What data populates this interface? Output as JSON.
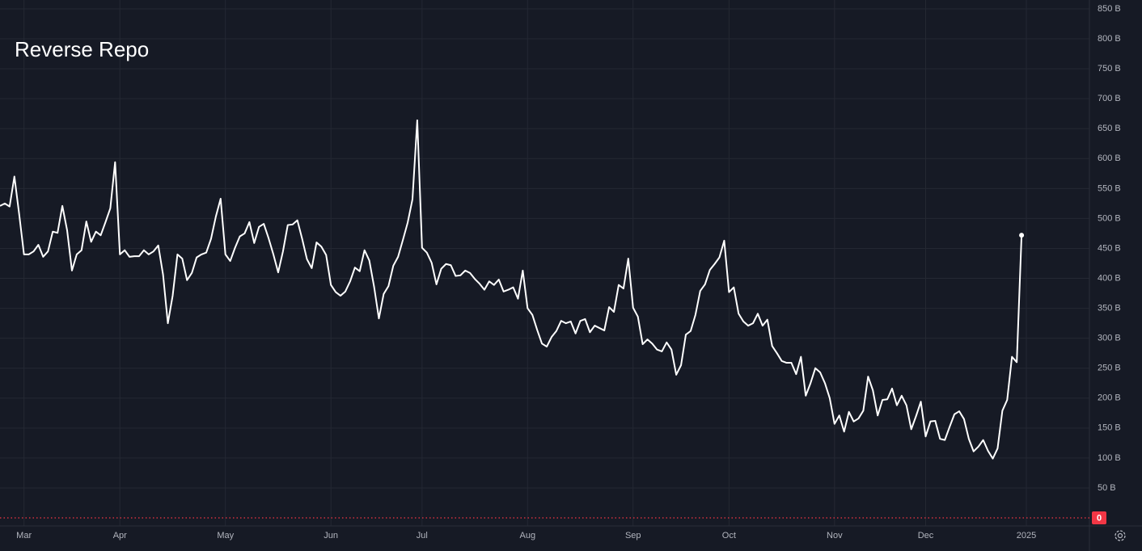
{
  "chart_data": {
    "type": "line",
    "title": "Reverse Repo",
    "categories": [
      null,
      null,
      null,
      null,
      null,
      "Mar",
      null,
      null,
      null,
      null,
      null,
      null,
      null,
      null,
      null,
      null,
      null,
      null,
      null,
      null,
      null,
      null,
      null,
      null,
      null,
      "Apr",
      null,
      null,
      null,
      null,
      null,
      null,
      null,
      null,
      null,
      null,
      null,
      null,
      null,
      null,
      null,
      null,
      null,
      null,
      null,
      null,
      null,
      "May",
      null,
      null,
      null,
      null,
      null,
      null,
      null,
      null,
      null,
      null,
      null,
      null,
      null,
      null,
      null,
      null,
      null,
      null,
      null,
      null,
      null,
      "Jun",
      null,
      null,
      null,
      null,
      null,
      null,
      null,
      null,
      null,
      null,
      null,
      null,
      null,
      null,
      null,
      null,
      null,
      null,
      "Jul",
      null,
      null,
      null,
      null,
      null,
      null,
      null,
      null,
      null,
      null,
      null,
      null,
      null,
      null,
      null,
      null,
      null,
      null,
      null,
      null,
      null,
      "Aug",
      null,
      null,
      null,
      null,
      null,
      null,
      null,
      null,
      null,
      null,
      null,
      null,
      null,
      null,
      null,
      null,
      null,
      null,
      null,
      null,
      null,
      "Sep",
      null,
      null,
      null,
      null,
      null,
      null,
      null,
      null,
      null,
      null,
      null,
      null,
      null,
      null,
      null,
      null,
      null,
      null,
      null,
      "Oct",
      null,
      null,
      null,
      null,
      null,
      null,
      null,
      null,
      null,
      null,
      null,
      null,
      null,
      null,
      null,
      null,
      null,
      null,
      null,
      null,
      null,
      "Nov",
      null,
      null,
      null,
      null,
      null,
      null,
      null,
      null,
      null,
      null,
      null,
      null,
      null,
      null,
      null,
      null,
      null,
      null,
      "Dec",
      null,
      null,
      null,
      null,
      null,
      null,
      null,
      null,
      null,
      null,
      null,
      null,
      null,
      null,
      null,
      null,
      null,
      null,
      null,
      null,
      "2025"
    ],
    "values": [
      521,
      525,
      520,
      570,
      507,
      440,
      440,
      445,
      456,
      436,
      445,
      478,
      476,
      521,
      480,
      413,
      440,
      447,
      495,
      461,
      478,
      472,
      494,
      517,
      594,
      440,
      447,
      436,
      437,
      437,
      447,
      440,
      445,
      455,
      406,
      325,
      371,
      440,
      433,
      397,
      409,
      435,
      440,
      443,
      466,
      503,
      533,
      440,
      429,
      451,
      470,
      475,
      494,
      459,
      486,
      491,
      467,
      440,
      410,
      445,
      489,
      490,
      497,
      466,
      432,
      417,
      460,
      453,
      439,
      389,
      377,
      371,
      378,
      395,
      418,
      412,
      447,
      430,
      386,
      333,
      374,
      387,
      421,
      436,
      464,
      493,
      532,
      664,
      451,
      443,
      426,
      390,
      416,
      424,
      422,
      404,
      405,
      413,
      409,
      399,
      391,
      381,
      395,
      389,
      398,
      378,
      381,
      385,
      366,
      413,
      350,
      339,
      314,
      291,
      286,
      302,
      312,
      329,
      325,
      328,
      308,
      329,
      332,
      310,
      321,
      317,
      313,
      352,
      344,
      389,
      383,
      433,
      351,
      336,
      290,
      298,
      291,
      281,
      278,
      293,
      281,
      239,
      255,
      306,
      312,
      339,
      379,
      390,
      414,
      424,
      435,
      463,
      377,
      385,
      341,
      328,
      321,
      325,
      341,
      321,
      331,
      287,
      275,
      262,
      259,
      259,
      240,
      269,
      204,
      225,
      250,
      243,
      225,
      200,
      157,
      171,
      144,
      177,
      161,
      166,
      179,
      236,
      213,
      171,
      197,
      198,
      216,
      188,
      204,
      188,
      148,
      170,
      194,
      136,
      161,
      162,
      132,
      130,
      152,
      173,
      178,
      165,
      132,
      111,
      119,
      130,
      112,
      99,
      116,
      179,
      197,
      269,
      260,
      472,
      null
    ],
    "color": "#ffffff",
    "ylim": [
      0,
      850
    ],
    "yticks": [
      {
        "value": 50,
        "label": "50 B"
      },
      {
        "value": 100,
        "label": "100 B"
      },
      {
        "value": 150,
        "label": "150 B"
      },
      {
        "value": 200,
        "label": "200 B"
      },
      {
        "value": 250,
        "label": "250 B"
      },
      {
        "value": 300,
        "label": "300 B"
      },
      {
        "value": 350,
        "label": "350 B"
      },
      {
        "value": 400,
        "label": "400 B"
      },
      {
        "value": 450,
        "label": "450 B"
      },
      {
        "value": 500,
        "label": "500 B"
      },
      {
        "value": 550,
        "label": "550 B"
      },
      {
        "value": 600,
        "label": "600 B"
      },
      {
        "value": 650,
        "label": "650 B"
      },
      {
        "value": 700,
        "label": "700 B"
      },
      {
        "value": 750,
        "label": "750 B"
      },
      {
        "value": 800,
        "label": "800 B"
      },
      {
        "value": 850,
        "label": "850 B"
      }
    ],
    "zero_line": 0,
    "zero_line_color": "#f23645",
    "grid": true
  }
}
